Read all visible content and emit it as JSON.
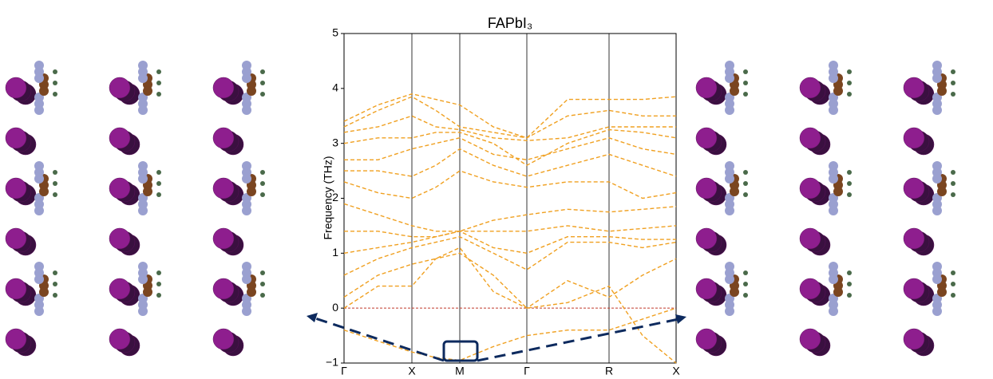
{
  "chart_data": {
    "type": "line",
    "title": "FAPbI₃",
    "y_label": "Frequency (THz)",
    "color": "#f0a020",
    "dashed": true,
    "zero_line_color": "#c0392b",
    "x": [
      0,
      0.425,
      0.85,
      1.15,
      1.45,
      1.87,
      2.29,
      2.8,
      3.32,
      3.74,
      4.16
    ],
    "xlim": [
      0,
      4.16
    ],
    "xticks": [
      {
        "value": 0,
        "label": "Γ"
      },
      {
        "value": 0.85,
        "label": "X"
      },
      {
        "value": 1.45,
        "label": "M"
      },
      {
        "value": 2.29,
        "label": "Γ"
      },
      {
        "value": 3.32,
        "label": "R"
      },
      {
        "value": 4.16,
        "label": "X"
      }
    ],
    "ylim": [
      -1,
      5
    ],
    "yticks": [
      {
        "value": -1,
        "label": "−1"
      },
      0,
      1,
      2,
      3,
      4,
      5
    ],
    "series": [
      {
        "values": [
          -0.4,
          -0.6,
          -0.8,
          -0.9,
          -0.95,
          -0.7,
          -0.5,
          -0.4,
          -0.4,
          -0.2,
          0
        ]
      },
      {
        "values": [
          0,
          0.4,
          0.4,
          0.9,
          1.0,
          0.6,
          0,
          0.1,
          0.4,
          -0.5,
          -1.0
        ]
      },
      {
        "values": [
          0.2,
          0.6,
          0.8,
          0.9,
          1.1,
          0.3,
          0,
          0.5,
          0.2,
          0.6,
          0.9
        ]
      },
      {
        "values": [
          0.6,
          0.9,
          1.1,
          1.2,
          1.3,
          1.0,
          0.7,
          1.2,
          1.2,
          1.1,
          1.2
        ]
      },
      {
        "values": [
          1.0,
          1.1,
          1.2,
          1.3,
          1.4,
          1.1,
          1.0,
          1.3,
          1.3,
          1.25,
          1.25
        ]
      },
      {
        "values": [
          1.4,
          1.4,
          1.3,
          1.3,
          1.4,
          1.4,
          1.4,
          1.5,
          1.4,
          1.45,
          1.5
        ]
      },
      {
        "values": [
          1.9,
          1.7,
          1.5,
          1.4,
          1.4,
          1.6,
          1.7,
          1.8,
          1.75,
          1.8,
          1.85
        ]
      },
      {
        "values": [
          2.3,
          2.1,
          2.0,
          2.2,
          2.5,
          2.3,
          2.2,
          2.3,
          2.3,
          2.0,
          2.1
        ]
      },
      {
        "values": [
          2.5,
          2.5,
          2.4,
          2.6,
          2.9,
          2.6,
          2.4,
          2.6,
          2.8,
          2.6,
          2.4
        ]
      },
      {
        "values": [
          2.7,
          2.7,
          2.9,
          3.0,
          3.1,
          2.8,
          2.7,
          2.9,
          3.1,
          2.9,
          2.8
        ]
      },
      {
        "values": [
          3.0,
          3.1,
          3.1,
          3.2,
          3.2,
          3.0,
          2.6,
          3.0,
          3.25,
          3.2,
          3.1
        ]
      },
      {
        "values": [
          3.2,
          3.3,
          3.5,
          3.3,
          3.25,
          3.1,
          3.05,
          3.1,
          3.3,
          3.3,
          3.3
        ]
      },
      {
        "values": [
          3.3,
          3.6,
          3.85,
          3.6,
          3.3,
          3.2,
          3.1,
          3.5,
          3.6,
          3.5,
          3.5
        ]
      },
      {
        "values": [
          3.4,
          3.7,
          3.9,
          3.8,
          3.7,
          3.3,
          3.1,
          3.8,
          3.8,
          3.8,
          3.85
        ]
      }
    ]
  }
}
